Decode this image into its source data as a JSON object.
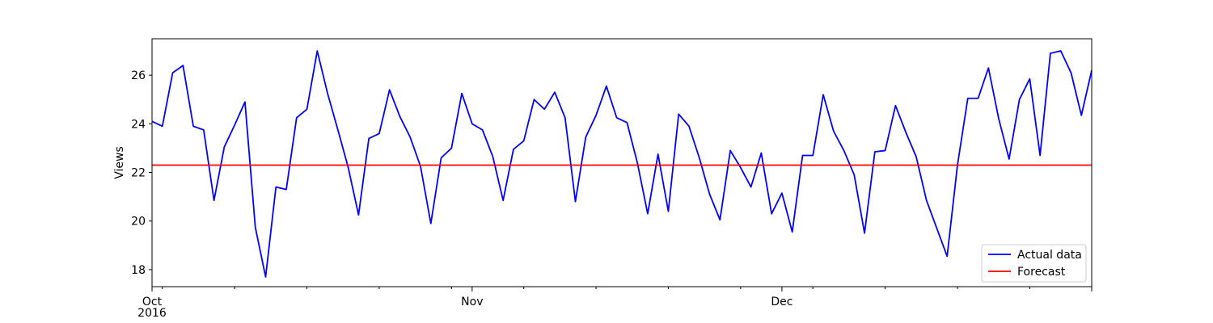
{
  "chart_data": {
    "type": "line",
    "title": "",
    "xlabel": "",
    "ylabel": "Views",
    "x_start": "2016-10-01",
    "x_end": "2016-12-31",
    "ylim": [
      17.3,
      27.5
    ],
    "grid": false,
    "legend_position": "bottom-right",
    "x_ticks": [
      {
        "date": "2016-10-01",
        "label": "Oct",
        "sublabel": "2016"
      },
      {
        "date": "2016-11-01",
        "label": "Nov",
        "sublabel": ""
      },
      {
        "date": "2016-12-01",
        "label": "Dec",
        "sublabel": ""
      }
    ],
    "y_ticks": [
      18,
      20,
      22,
      24,
      26
    ],
    "series": [
      {
        "name": "Actual data",
        "color": "#0000ff",
        "x": [
          "2016-10-01",
          "2016-10-02",
          "2016-10-03",
          "2016-10-04",
          "2016-10-05",
          "2016-10-06",
          "2016-10-07",
          "2016-10-08",
          "2016-10-09",
          "2016-10-10",
          "2016-10-11",
          "2016-10-12",
          "2016-10-13",
          "2016-10-14",
          "2016-10-15",
          "2016-10-16",
          "2016-10-17",
          "2016-10-18",
          "2016-10-19",
          "2016-10-20",
          "2016-10-21",
          "2016-10-22",
          "2016-10-23",
          "2016-10-24",
          "2016-10-25",
          "2016-10-26",
          "2016-10-27",
          "2016-10-28",
          "2016-10-29",
          "2016-10-30",
          "2016-10-31",
          "2016-11-01",
          "2016-11-02",
          "2016-11-03",
          "2016-11-04",
          "2016-11-05",
          "2016-11-06",
          "2016-11-07",
          "2016-11-08",
          "2016-11-09",
          "2016-11-10",
          "2016-11-11",
          "2016-11-12",
          "2016-11-13",
          "2016-11-14",
          "2016-11-15",
          "2016-11-16",
          "2016-11-17",
          "2016-11-18",
          "2016-11-19",
          "2016-11-20",
          "2016-11-21",
          "2016-11-22",
          "2016-11-23",
          "2016-11-24",
          "2016-11-25",
          "2016-11-26",
          "2016-11-27",
          "2016-11-28",
          "2016-11-29",
          "2016-11-30",
          "2016-12-01",
          "2016-12-02",
          "2016-12-03",
          "2016-12-04",
          "2016-12-05",
          "2016-12-06",
          "2016-12-07",
          "2016-12-08",
          "2016-12-09",
          "2016-12-10",
          "2016-12-11",
          "2016-12-12",
          "2016-12-13",
          "2016-12-14",
          "2016-12-15",
          "2016-12-16",
          "2016-12-17",
          "2016-12-18",
          "2016-12-19",
          "2016-12-20",
          "2016-12-21",
          "2016-12-22",
          "2016-12-23",
          "2016-12-24",
          "2016-12-25",
          "2016-12-26",
          "2016-12-27",
          "2016-12-28",
          "2016-12-29",
          "2016-12-30",
          "2016-12-31"
        ],
        "values": [
          24.1,
          23.9,
          26.1,
          26.4,
          23.9,
          23.75,
          20.85,
          23.05,
          23.95,
          24.9,
          19.75,
          17.7,
          21.4,
          21.3,
          24.25,
          24.6,
          27.0,
          25.25,
          23.75,
          22.2,
          20.25,
          23.4,
          23.6,
          25.4,
          24.3,
          23.45,
          22.25,
          19.9,
          22.6,
          23.0,
          25.25,
          24.0,
          23.75,
          22.65,
          20.85,
          22.95,
          23.3,
          25.0,
          24.6,
          25.3,
          24.25,
          20.8,
          23.45,
          24.35,
          25.55,
          24.25,
          24.05,
          22.4,
          20.3,
          22.75,
          20.4,
          24.4,
          23.9,
          22.6,
          21.1,
          20.05,
          22.9,
          22.2,
          21.4,
          22.8,
          20.3,
          21.15,
          19.55,
          22.7,
          22.7,
          25.2,
          23.7,
          22.9,
          21.9,
          19.5,
          22.85,
          22.9,
          24.75,
          23.65,
          22.65,
          20.85,
          19.7,
          18.55,
          22.3,
          25.05,
          25.05,
          26.3,
          24.2,
          22.55,
          25.0,
          25.85,
          22.7,
          26.9,
          27.0,
          26.1,
          24.35,
          26.2
        ]
      },
      {
        "name": "Forecast",
        "color": "#ff0000",
        "x": [
          "2016-10-01",
          "2016-12-31"
        ],
        "values": [
          22.3,
          22.3
        ]
      }
    ]
  }
}
